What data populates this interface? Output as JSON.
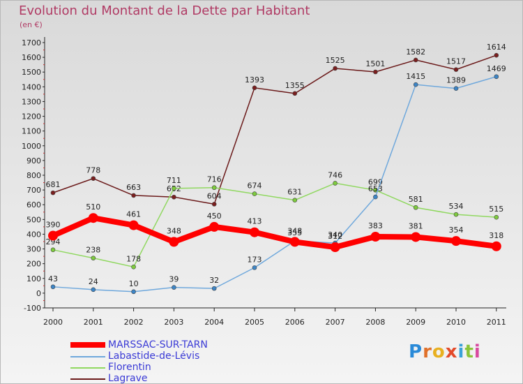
{
  "header": {
    "title": "Evolution du Montant de la Dette par Habitant",
    "subtitle": "(en €)"
  },
  "logo": {
    "letters": [
      "P",
      "r",
      "o",
      "x",
      "i",
      "t",
      "i"
    ]
  },
  "chart_data": {
    "type": "line",
    "title": "Evolution du Montant de la Dette par Habitant",
    "subtitle": "(en €)",
    "xlabel": "",
    "ylabel": "",
    "x": [
      "2000",
      "2001",
      "2002",
      "2003",
      "2004",
      "2005",
      "2006",
      "2007",
      "2008",
      "2009",
      "2010",
      "2011"
    ],
    "ylim": [
      -100,
      1700
    ],
    "y_ticks": [
      -100,
      0,
      100,
      200,
      300,
      400,
      500,
      600,
      700,
      800,
      900,
      1000,
      1100,
      1200,
      1300,
      1400,
      1500,
      1600,
      1700
    ],
    "grid": false,
    "legend_position": "bottom-left",
    "series": [
      {
        "name": "Lagrave",
        "color": "#6b1a1a",
        "marker": "#7a1e1e",
        "values": [
          681,
          778,
          663,
          652,
          604,
          1393,
          1355,
          1525,
          1501,
          1582,
          1517,
          1614
        ]
      },
      {
        "name": "Florentin",
        "color": "#90d860",
        "marker": "#7ecb3e",
        "values": [
          294,
          238,
          178,
          711,
          716,
          674,
          631,
          746,
          699,
          581,
          534,
          515
        ]
      },
      {
        "name": "Labastide-de-Lévis",
        "color": "#6fa8dc",
        "marker": "#3d85c6",
        "values": [
          43,
          24,
          10,
          39,
          32,
          173,
          355,
          340,
          653,
          1415,
          1389,
          1469
        ]
      },
      {
        "name": "MARSSAC-SUR-TARN",
        "color": "#ff0000",
        "marker": "#ff0000",
        "values": [
          390,
          510,
          461,
          348,
          450,
          413,
          348,
          312,
          383,
          381,
          354,
          318
        ]
      }
    ]
  },
  "legend": {
    "items": [
      {
        "label": "MARSSAC-SUR-TARN",
        "color": "#ff0000"
      },
      {
        "label": "Labastide-de-Lévis",
        "color": "#6fa8dc"
      },
      {
        "label": "Florentin",
        "color": "#90d860"
      },
      {
        "label": "Lagrave",
        "color": "#6b1a1a"
      }
    ]
  }
}
